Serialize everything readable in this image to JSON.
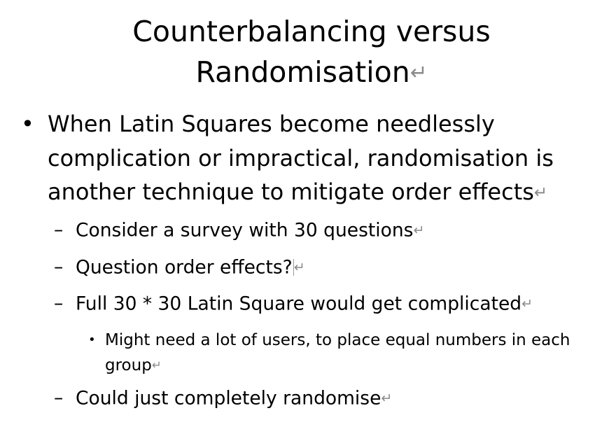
{
  "slide": {
    "title_line1": "Counterbalancing versus",
    "title_line2": "Randomisation",
    "paragraph_mark": "↵",
    "bullets": [
      {
        "marker": "•",
        "text": "When Latin Squares become needlessly complication or impractical, randomisation is another technique to mitigate order effects"
      }
    ],
    "sub_bullets": [
      {
        "marker": "–",
        "text": "Consider a survey with 30 questions"
      },
      {
        "marker": "–",
        "text": "Question order effects?"
      },
      {
        "marker": "–",
        "text": "Full 30 * 30 Latin Square would get complicated"
      },
      {
        "marker": "–",
        "text": "Could just completely randomise"
      }
    ],
    "sub_sub_bullets": [
      {
        "marker": "•",
        "text": "Might need a lot of users, to place equal numbers in each group"
      }
    ]
  }
}
